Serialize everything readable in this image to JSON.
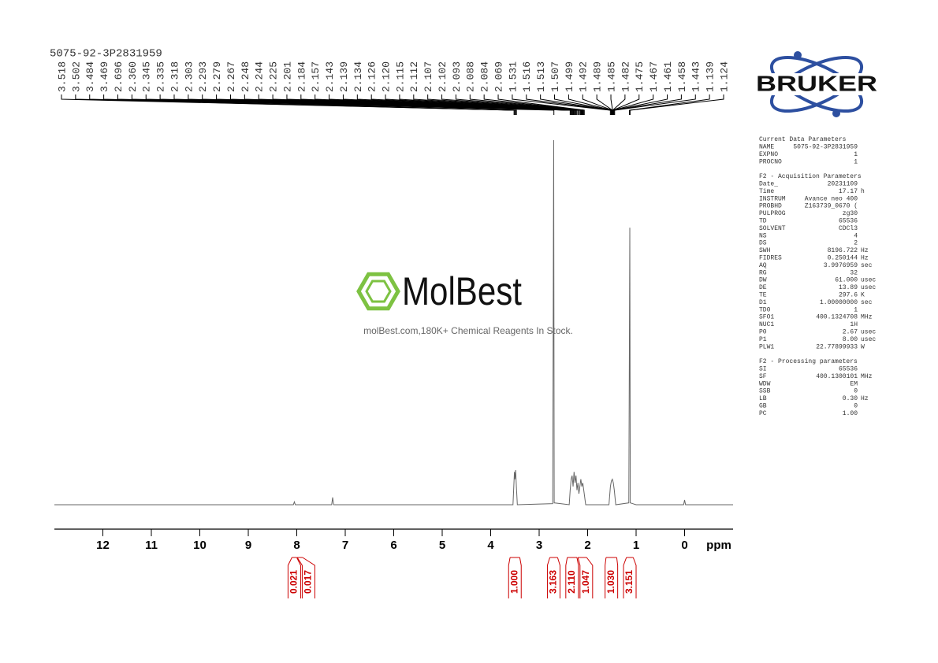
{
  "chart_data": {
    "type": "line",
    "title": "5075-92-3P2831959",
    "xlabel": "ppm",
    "xlim": [
      13,
      -1
    ],
    "xticks": [
      12,
      11,
      10,
      9,
      8,
      7,
      6,
      5,
      4,
      3,
      2,
      1,
      0
    ],
    "color": "#666666",
    "x": [
      13,
      8.07,
      8.05,
      8.03,
      7.28,
      7.26,
      7.24,
      3.54,
      3.52,
      3.51,
      3.5,
      3.485,
      3.47,
      3.45,
      2.72,
      2.7,
      2.69,
      2.38,
      2.36,
      2.34,
      2.32,
      2.3,
      2.28,
      2.26,
      2.24,
      2.22,
      2.2,
      2.18,
      2.16,
      2.14,
      2.12,
      2.1,
      2.08,
      2.06,
      2.04,
      1.56,
      1.53,
      1.51,
      1.49,
      1.47,
      1.45,
      1.42,
      1.15,
      1.13,
      1.12,
      1.0,
      0.02,
      0.0,
      -0.02,
      -1
    ],
    "values": [
      0,
      0,
      0.8,
      0,
      0,
      2,
      0,
      0,
      6,
      9,
      7,
      9.5,
      5,
      0,
      0.3,
      100,
      0.5,
      0,
      4,
      7,
      8,
      5,
      9,
      6,
      8,
      4,
      6,
      3,
      5,
      7,
      5,
      6,
      4,
      2,
      0,
      0,
      5,
      6.5,
      7,
      6,
      4,
      0,
      0.5,
      76,
      0.5,
      0,
      0,
      1.3,
      0,
      0
    ],
    "ylim": [
      0,
      100
    ],
    "peaks": {
      "values": [
        3.518,
        3.502,
        3.484,
        3.469,
        2.696,
        2.36,
        2.345,
        2.335,
        2.318,
        2.303,
        2.293,
        2.279,
        2.267,
        2.248,
        2.244,
        2.225,
        2.201,
        2.184,
        2.157,
        2.143,
        2.139,
        2.134,
        2.126,
        2.12,
        2.115,
        2.112,
        2.107,
        2.102,
        2.093,
        2.088,
        2.084,
        2.069,
        1.531,
        1.516,
        1.513,
        1.507,
        1.499,
        1.492,
        1.489,
        1.485,
        1.482,
        1.475,
        1.467,
        1.461,
        1.458,
        1.443,
        1.139,
        1.124
      ],
      "value_labels": [
        "3.518",
        "3.502",
        "3.484",
        "3.469",
        "2.696",
        "2.360",
        "2.345",
        "2.335",
        "2.318",
        "2.303",
        "2.293",
        "2.279",
        "2.267",
        "2.248",
        "2.244",
        "2.225",
        "2.201",
        "2.184",
        "2.157",
        "2.143",
        "2.139",
        "2.134",
        "2.126",
        "2.120",
        "2.115",
        "2.112",
        "2.107",
        "2.102",
        "2.093",
        "2.088",
        "2.084",
        "2.069",
        "1.531",
        "1.516",
        "1.513",
        "1.507",
        "1.499",
        "1.492",
        "1.489",
        "1.485",
        "1.482",
        "1.475",
        "1.467",
        "1.461",
        "1.458",
        "1.443",
        "1.139",
        "1.124"
      ]
    },
    "integrals": {
      "color": "#cc0000",
      "values": [
        0.021,
        0.017,
        1,
        3.163,
        2.11,
        1.047,
        1.03,
        3.151
      ],
      "value_labels": [
        "0.021",
        "0.017",
        "1.000",
        "3.163",
        "2.110",
        "1.047",
        "1.030",
        "3.151"
      ],
      "ranges": [
        [
          8.1,
          8.0
        ],
        [
          7.99,
          7.88
        ],
        [
          3.6,
          3.4
        ],
        [
          2.78,
          2.62
        ],
        [
          2.42,
          2.22
        ],
        [
          2.2,
          2.02
        ],
        [
          1.62,
          1.4
        ],
        [
          1.2,
          1.06
        ]
      ]
    }
  },
  "logo": "BRUKER",
  "watermark": {
    "brand": "MolBest",
    "tagline": "molBest.com,180K+ Chemical Reagents In Stock."
  },
  "parameters": [
    {
      "title": "Current Data Parameters",
      "rows": [
        [
          "NAME",
          "5075-92-3P2831959"
        ],
        [
          "EXPNO",
          "1"
        ],
        [
          "PROCNO",
          "1"
        ]
      ]
    },
    {
      "title": "F2 - Acquisition Parameters",
      "rows": [
        [
          "Date_",
          "20231109"
        ],
        [
          "Time",
          "17.17",
          "h"
        ],
        [
          "INSTRUM",
          "Avance neo 400"
        ],
        [
          "PROBHD",
          "Z163739_0670 ("
        ],
        [
          "PULPROG",
          "zg30"
        ],
        [
          "TD",
          "65536"
        ],
        [
          "SOLVENT",
          "CDCl3"
        ],
        [
          "NS",
          "4"
        ],
        [
          "DS",
          "2"
        ],
        [
          "SWH",
          "8196.722",
          "Hz"
        ],
        [
          "FIDRES",
          "0.250144",
          "Hz"
        ],
        [
          "AQ",
          "3.9976959",
          "sec"
        ],
        [
          "RG",
          "32"
        ],
        [
          "DW",
          "61.000",
          "usec"
        ],
        [
          "DE",
          "13.89",
          "usec"
        ],
        [
          "TE",
          "297.6",
          "K"
        ],
        [
          "D1",
          "1.00000000",
          "sec"
        ],
        [
          "TD0",
          "1"
        ],
        [
          "SFO1",
          "400.1324708",
          "MHz"
        ],
        [
          "NUC1",
          "1H"
        ],
        [
          "P0",
          "2.67",
          "usec"
        ],
        [
          "P1",
          "8.00",
          "usec"
        ],
        [
          "PLW1",
          "22.77899933",
          "W"
        ]
      ]
    },
    {
      "title": "F2 - Processing parameters",
      "rows": [
        [
          "SI",
          "65536"
        ],
        [
          "SF",
          "400.1300101",
          "MHz"
        ],
        [
          "WDW",
          "EM"
        ],
        [
          "SSB",
          "0"
        ],
        [
          "LB",
          "0.30",
          "Hz"
        ],
        [
          "GB",
          "0"
        ],
        [
          "PC",
          "1.00"
        ]
      ]
    }
  ]
}
